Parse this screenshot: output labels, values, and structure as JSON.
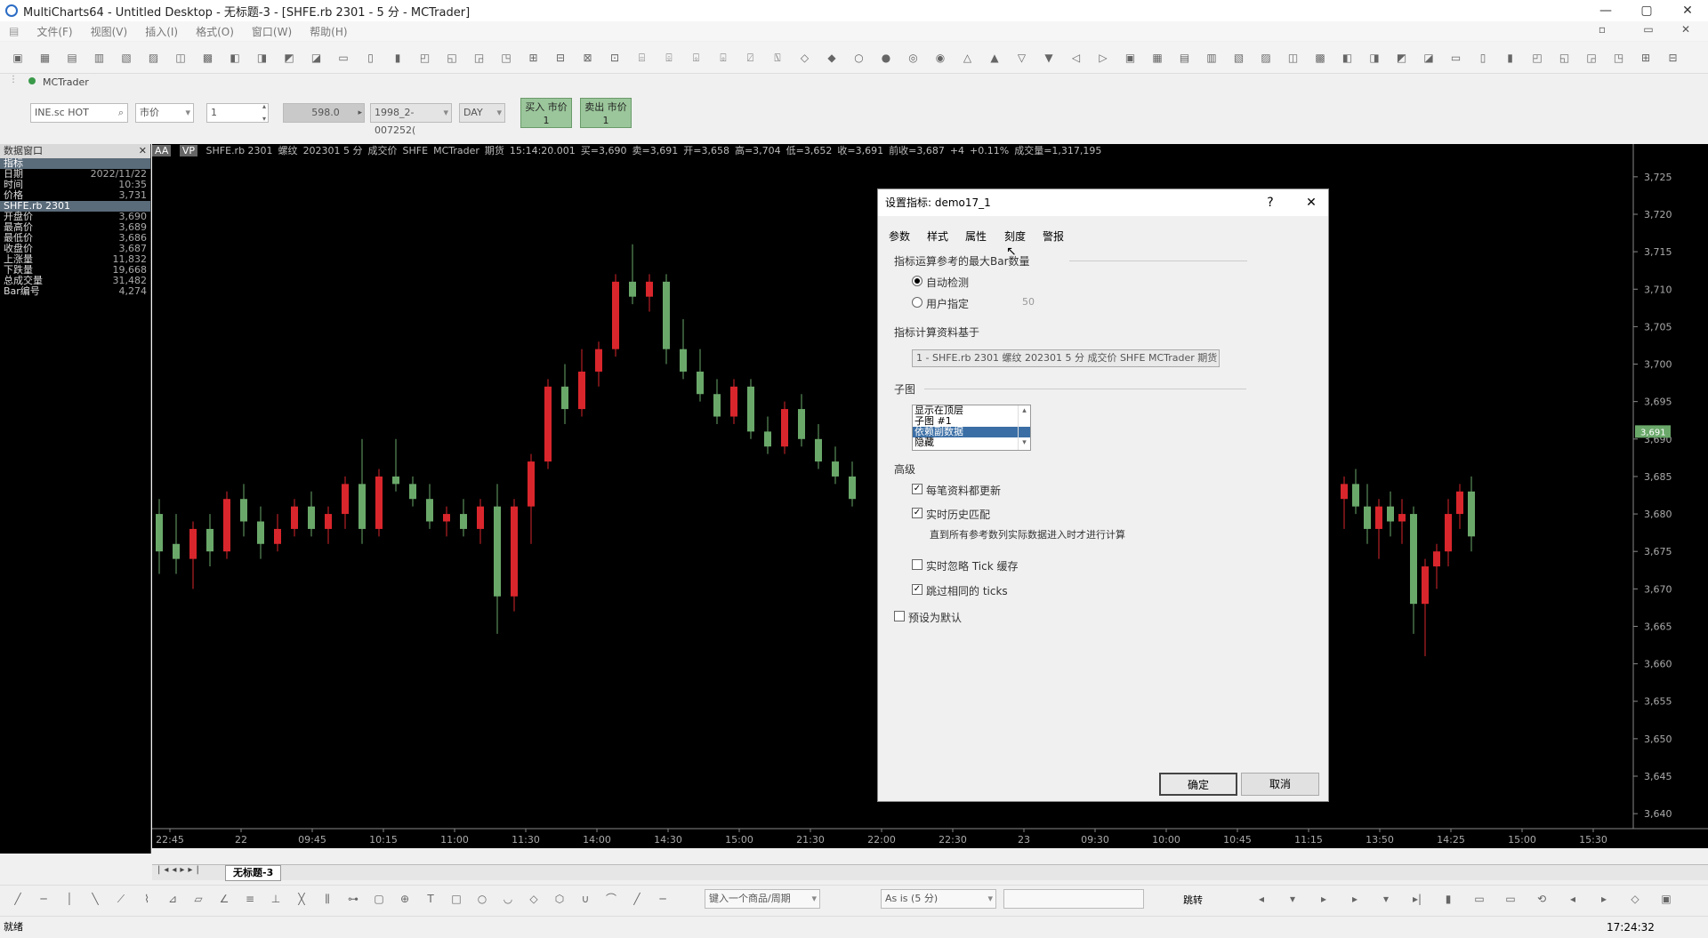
{
  "window": {
    "title": "MultiCharts64 - Untitled Desktop - 无标题-3 - [SHFE.rb 2301 - 5 分 - MCTrader]",
    "min_label": "—",
    "max_label": "▢",
    "close_label": "✕"
  },
  "menu": [
    "文件(F)",
    "视图(V)",
    "插入(I)",
    "格式(O)",
    "窗口(W)",
    "帮助(H)"
  ],
  "mc_tab": "MCTrader",
  "order": {
    "symbol": "INE.sc HOT",
    "order_type": "市价",
    "qty": "1",
    "price": "598.0",
    "account": "1998_2-007252(",
    "tif": "DAY",
    "buy_label": "买入 市价",
    "buy_qty": "1",
    "sell_label": "卖出 市价",
    "sell_qty": "1"
  },
  "left_panel": {
    "title": "数据窗口",
    "rows": [
      {
        "k": "指标",
        "v": "",
        "sel": true
      },
      {
        "k": "日期",
        "v": "2022/11/22",
        "sel": false
      },
      {
        "k": "时间",
        "v": "10:35",
        "sel": false
      },
      {
        "k": "价格",
        "v": "3,731",
        "sel": false
      },
      {
        "k": "SHFE.rb 2301",
        "v": "",
        "sel": true
      },
      {
        "k": "开盘价",
        "v": "3,690",
        "sel": false
      },
      {
        "k": "最高价",
        "v": "3,689",
        "sel": false
      },
      {
        "k": "最低价",
        "v": "3,686",
        "sel": false
      },
      {
        "k": "收盘价",
        "v": "3,687",
        "sel": false
      },
      {
        "k": "上涨量",
        "v": "11,832",
        "sel": false
      },
      {
        "k": "下跌量",
        "v": "19,668",
        "sel": false
      },
      {
        "k": "总成交量",
        "v": "31,482",
        "sel": false
      },
      {
        "k": "Bar编号",
        "v": "4,274",
        "sel": false
      }
    ]
  },
  "chart_header": {
    "badge1": "AA",
    "badge2": "VP",
    "items": [
      "SHFE.rb 2301",
      "螺纹",
      "202301 5 分",
      "成交价",
      "SHFE",
      "MCTrader",
      "期货",
      "15:14:20.001",
      "买=3,690",
      "卖=3,691",
      "开=3,658",
      "高=3,704",
      "低=3,652",
      "收=3,691",
      "前收=3,687",
      "+4",
      "+0.11%",
      "成交量=1,317,195"
    ]
  },
  "chart_data": {
    "type": "candlestick",
    "y_ticks": [
      "3,725",
      "3,720",
      "3,715",
      "3,710",
      "3,705",
      "3,700",
      "3,695",
      "3,690",
      "3,685",
      "3,680",
      "3,675",
      "3,670",
      "3,665",
      "3,660",
      "3,655",
      "3,650",
      "3,645",
      "3,640"
    ],
    "ylim": [
      3638,
      3727
    ],
    "last_price_label": "3,691",
    "last_price": 3691,
    "x_ticks": [
      "22:45",
      "22",
      "09:45",
      "10:15",
      "11:00",
      "11:30",
      "14:00",
      "14:30",
      "15:00",
      "21:30",
      "22:00",
      "22:30",
      "23",
      "09:30",
      "10:00",
      "10:45",
      "11:15",
      "13:50",
      "14:25",
      "15:00",
      "15:30"
    ],
    "up_color": "#d9262c",
    "down_color": "#6aa86a",
    "candles": [
      [
        3680,
        3682,
        3672,
        3675
      ],
      [
        3676,
        3680,
        3672,
        3674
      ],
      [
        3674,
        3679,
        3670,
        3678
      ],
      [
        3678,
        3680,
        3673,
        3675
      ],
      [
        3675,
        3683,
        3674,
        3682
      ],
      [
        3682,
        3684,
        3677,
        3679
      ],
      [
        3679,
        3681,
        3674,
        3676
      ],
      [
        3676,
        3680,
        3675,
        3678
      ],
      [
        3678,
        3682,
        3677,
        3681
      ],
      [
        3681,
        3683,
        3677,
        3678
      ],
      [
        3678,
        3681,
        3676,
        3680
      ],
      [
        3680,
        3685,
        3678,
        3684
      ],
      [
        3684,
        3690,
        3676,
        3678
      ],
      [
        3678,
        3686,
        3677,
        3685
      ],
      [
        3685,
        3690,
        3683,
        3684
      ],
      [
        3684,
        3685,
        3681,
        3682
      ],
      [
        3682,
        3684,
        3678,
        3679
      ],
      [
        3679,
        3681,
        3677,
        3680
      ],
      [
        3680,
        3682,
        3677,
        3678
      ],
      [
        3678,
        3682,
        3676,
        3681
      ],
      [
        3681,
        3684,
        3664,
        3669
      ],
      [
        3669,
        3682,
        3667,
        3681
      ],
      [
        3681,
        3688,
        3676,
        3687
      ],
      [
        3687,
        3698,
        3686,
        3697
      ],
      [
        3697,
        3700,
        3692,
        3694
      ],
      [
        3694,
        3702,
        3693,
        3699
      ],
      [
        3699,
        3703,
        3697,
        3702
      ],
      [
        3702,
        3712,
        3701,
        3711
      ],
      [
        3711,
        3716,
        3708,
        3709
      ],
      [
        3709,
        3712,
        3707,
        3711
      ],
      [
        3711,
        3712,
        3700,
        3702
      ],
      [
        3702,
        3706,
        3698,
        3699
      ],
      [
        3699,
        3702,
        3695,
        3696
      ],
      [
        3696,
        3698,
        3692,
        3693
      ],
      [
        3693,
        3698,
        3692,
        3697
      ],
      [
        3697,
        3698,
        3690,
        3691
      ],
      [
        3691,
        3693,
        3688,
        3689
      ],
      [
        3689,
        3695,
        3688,
        3694
      ],
      [
        3694,
        3696,
        3689,
        3690
      ],
      [
        3690,
        3692,
        3686,
        3687
      ],
      [
        3687,
        3689,
        3684,
        3685
      ],
      [
        3685,
        3687,
        3681,
        3682
      ],
      [
        3682,
        3685,
        3678,
        3684
      ],
      [
        3684,
        3686,
        3680,
        3681
      ],
      [
        3681,
        3684,
        3676,
        3678
      ],
      [
        3678,
        3682,
        3674,
        3681
      ],
      [
        3681,
        3683,
        3677,
        3679
      ],
      [
        3679,
        3682,
        3676,
        3680
      ],
      [
        3680,
        3681,
        3664,
        3668
      ],
      [
        3668,
        3674,
        3661,
        3673
      ],
      [
        3673,
        3676,
        3670,
        3675
      ],
      [
        3675,
        3682,
        3673,
        3680
      ],
      [
        3680,
        3684,
        3678,
        3683
      ],
      [
        3683,
        3685,
        3675,
        3677
      ]
    ]
  },
  "dialog": {
    "title": "设置指标: demo17_1",
    "help_label": "?",
    "close_label": "✕",
    "tabs": [
      "参数",
      "样式",
      "属性",
      "刻度",
      "警报"
    ],
    "max_bars_label": "指标运算参考的最大Bar数量",
    "radio_auto": "自动检测",
    "radio_user": "用户指定",
    "user_value": "50",
    "base_label": "指标计算资料基于",
    "data_source": "1 - SHFE.rb 2301 螺纹  202301 5 分 成交价 SHFE MCTrader 期货",
    "subchart_label": "子图",
    "subchart_items": [
      "显示在顶层",
      "子图 #1",
      "依赖副数据",
      "隐藏"
    ],
    "subchart_selected": 2,
    "advanced_label": "高级",
    "chk_every_tick": "每笔资料都更新",
    "chk_rt_history": "实时历史匹配",
    "rt_note": "直到所有参考数列实际数据进入时才进行计算",
    "chk_skip_tick_cache": "实时忽略 Tick 缓存",
    "chk_skip_same_ticks": "跳过相同的 ticks",
    "chk_default": "预设为默认",
    "ok_label": "确定",
    "cancel_label": "取消"
  },
  "tab": {
    "name": "无标题-3"
  },
  "drawbar": {
    "symbol_input": "键入一个商品/周期",
    "asis": "As is (5 分)",
    "jump_label": "跳转"
  },
  "status": {
    "text": "就绪",
    "time": "17:24:32"
  }
}
